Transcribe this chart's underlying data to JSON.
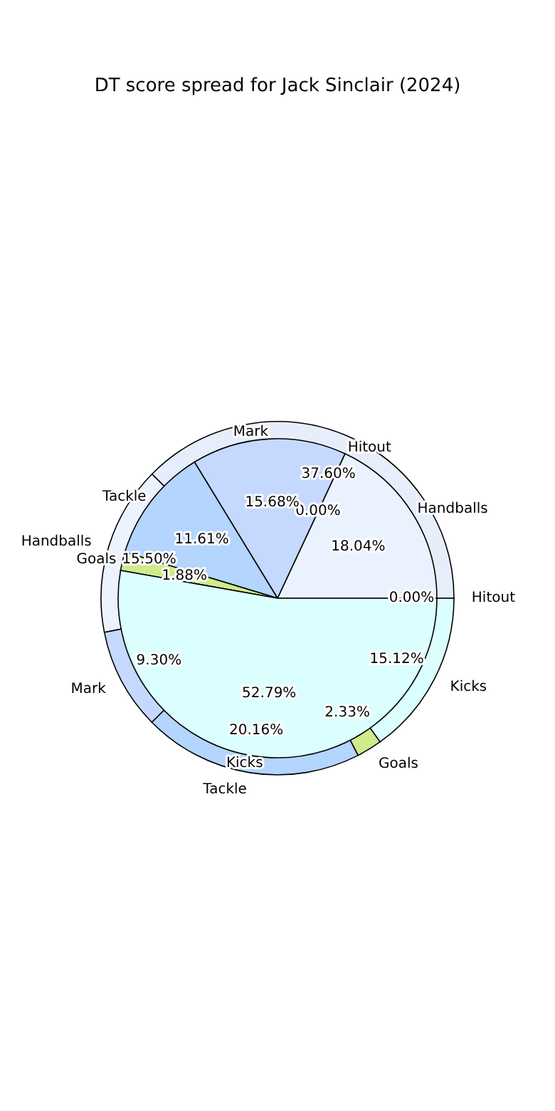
{
  "chart_data": [
    {
      "type": "pie",
      "title": "DT score spread for Jack Sinclair (2024)",
      "categories": [
        "Hitout",
        null,
        "Handballs",
        "Mark",
        "Tackle",
        "Goals",
        "Kicks"
      ],
      "values": [
        0.0,
        37.6,
        15.5,
        9.3,
        20.16,
        2.33,
        15.12
      ],
      "colors": [
        "#f0f0f0",
        "#e6eefc",
        "#ecf2fe",
        "#c5d9fe",
        "#b3d5fe",
        "#d1ea8b",
        "#dbffff"
      ],
      "value_labels": [
        "0.00%",
        "37.60%",
        "15.50%",
        "9.30%",
        "20.16%",
        "2.33%",
        "15.12%"
      ]
    },
    {
      "type": "pie",
      "categories": [
        "Handballs",
        "Hitout",
        "Mark",
        "Tackle",
        "Goals",
        "Kicks"
      ],
      "values": [
        18.04,
        0.0,
        15.68,
        11.61,
        1.88,
        52.79
      ],
      "colors": [
        "#ebf2ff",
        "#f0f0f0",
        "#c5d9fe",
        "#b3d5fe",
        "#d1ea8b",
        "#dbffff"
      ],
      "value_labels": [
        "18.04%",
        "0.00%",
        "15.68%",
        "11.61%",
        "1.88%",
        "52.79%"
      ]
    }
  ]
}
